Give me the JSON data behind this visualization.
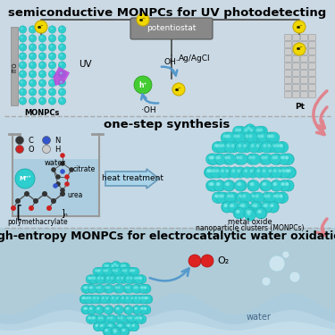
{
  "title1": "semiconductive MONPCs for UV photodetecting",
  "title2": "one-step synthesis",
  "title3": "high-entropy MONPCs for electrocatalytic water oxidation",
  "bg_top": "#cad9e4",
  "bg_mid": "#c8dbe6",
  "bg_bot": "#b5cfe0",
  "teal": "#2ecece",
  "teal_edge": "#1aabab",
  "teal_hi": "#7ae8e5",
  "arrow_blue": "#5599cc",
  "pink": "#e0848e",
  "yellow": "#f0d800",
  "yellow_edge": "#c8aa00",
  "green": "#44cc33",
  "gray_box": "#888888",
  "gray_pt": "#cccccc",
  "gray_ito": "#aaaaaa",
  "black": "#111111",
  "water_fill": "#a0c8dc",
  "water_light": "#c0dcea"
}
